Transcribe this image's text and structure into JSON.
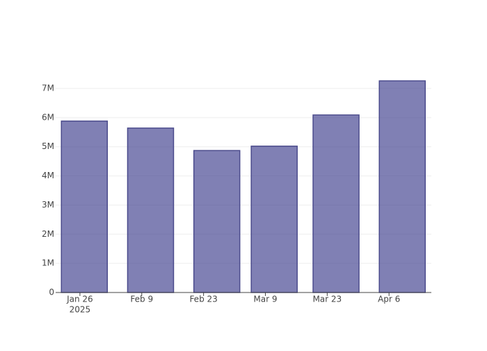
{
  "chart_data": {
    "type": "bar",
    "x": [
      "2025-01-27",
      "2025-02-11",
      "2025-02-26",
      "2025-03-11",
      "2025-03-25",
      "2025-04-09"
    ],
    "values": [
      5880000,
      5640000,
      4870000,
      5020000,
      6090000,
      7260000
    ],
    "color": "rgba(60,60,140,0.65)",
    "edgecolor": "#4b4b8c",
    "xlim": [
      "2025-01-20T12:00:00",
      "2025-04-15T14:00:00"
    ],
    "xticks": [
      {
        "value": "2025-01-26",
        "label": "Jan 26",
        "sublabel": "2025"
      },
      {
        "value": "2025-02-09",
        "label": "Feb 9"
      },
      {
        "value": "2025-02-23",
        "label": "Feb 23"
      },
      {
        "value": "2025-03-09",
        "label": "Mar 9"
      },
      {
        "value": "2025-03-23",
        "label": "Mar 23"
      },
      {
        "value": "2025-04-06",
        "label": "Apr 6"
      }
    ],
    "ylim": [
      0,
      7645000
    ],
    "yticks": [
      0,
      {
        "value": 1000000,
        "label": "1M"
      },
      {
        "value": 2000000,
        "label": "2M"
      },
      {
        "value": 3000000,
        "label": "3M"
      },
      {
        "value": 4000000,
        "label": "4M"
      },
      {
        "value": 5000000,
        "label": "5M"
      },
      {
        "value": 6000000,
        "label": "6M"
      },
      {
        "value": 7000000,
        "label": "7M"
      }
    ],
    "grid": true
  }
}
